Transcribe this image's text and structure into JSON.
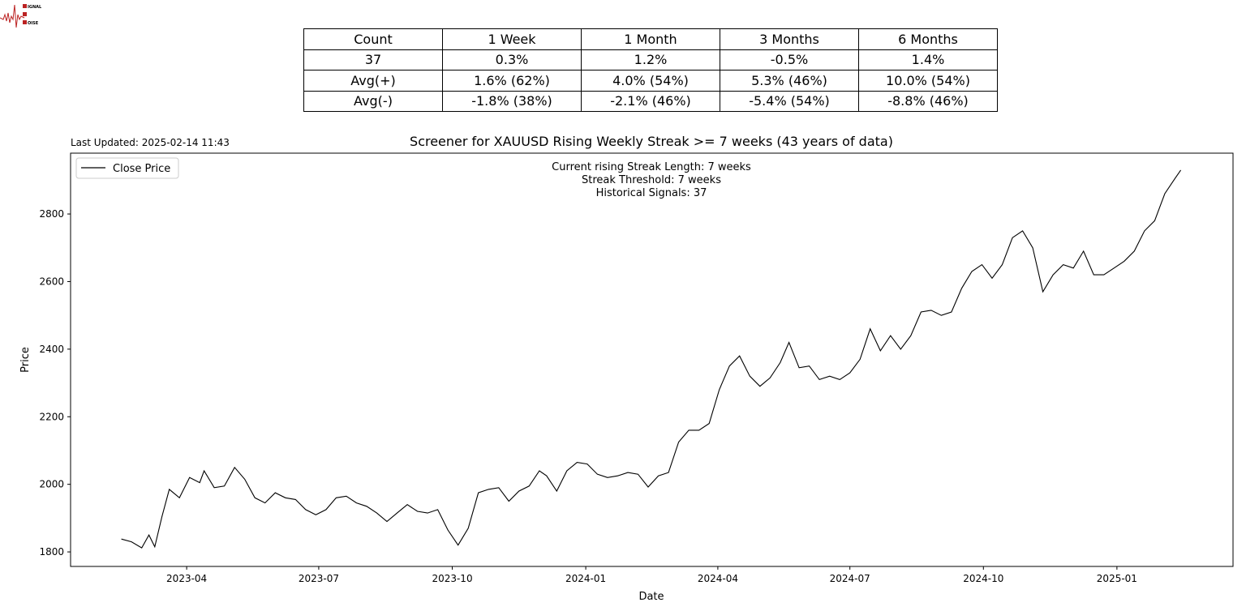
{
  "last_updated": "Last Updated: 2025-02-14 11:43",
  "logo_text": "SIGNAL 2 NOISE",
  "table": {
    "rows": [
      [
        "Count",
        "1 Week",
        "1 Month",
        "3 Months",
        "6 Months"
      ],
      [
        "37",
        "0.3%",
        "1.2%",
        "-0.5%",
        "1.4%"
      ],
      [
        "Avg(+)",
        "1.6% (62%)",
        "4.0% (54%)",
        "5.3% (46%)",
        "10.0% (54%)"
      ],
      [
        "Avg(-)",
        "-1.8% (38%)",
        "-2.1% (46%)",
        "-5.4% (54%)",
        "-8.8% (46%)"
      ]
    ]
  },
  "chart_data": {
    "type": "line",
    "title": "Screener for XAUUSD Rising Weekly Streak >= 7 weeks (43 years of data)",
    "xlabel": "Date",
    "ylabel": "Price",
    "annotations": [
      "Current rising Streak Length: 7 weeks",
      "Streak Threshold: 7 weeks",
      "Historical Signals: 37"
    ],
    "legend": {
      "position": "top-left",
      "entries": [
        "Close Price"
      ]
    },
    "grid": false,
    "xlim": [
      "2023-01-11",
      "2025-03-22"
    ],
    "ylim": [
      1757,
      2980
    ],
    "x_ticks": [
      "2023-04",
      "2023-07",
      "2023-10",
      "2024-01",
      "2024-04",
      "2024-07",
      "2024-10",
      "2025-01"
    ],
    "y_ticks": [
      1800,
      2000,
      2200,
      2400,
      2600,
      2800
    ],
    "line_color": "#000000",
    "series": [
      {
        "name": "Close Price",
        "points": [
          [
            "2023-02-15",
            1838
          ],
          [
            "2023-02-22",
            1830
          ],
          [
            "2023-03-01",
            1812
          ],
          [
            "2023-03-06",
            1850
          ],
          [
            "2023-03-10",
            1815
          ],
          [
            "2023-03-15",
            1905
          ],
          [
            "2023-03-20",
            1985
          ],
          [
            "2023-03-27",
            1960
          ],
          [
            "2023-04-03",
            2020
          ],
          [
            "2023-04-10",
            2005
          ],
          [
            "2023-04-13",
            2040
          ],
          [
            "2023-04-20",
            1990
          ],
          [
            "2023-04-27",
            1995
          ],
          [
            "2023-05-04",
            2050
          ],
          [
            "2023-05-11",
            2015
          ],
          [
            "2023-05-18",
            1960
          ],
          [
            "2023-05-25",
            1945
          ],
          [
            "2023-06-01",
            1975
          ],
          [
            "2023-06-08",
            1960
          ],
          [
            "2023-06-15",
            1955
          ],
          [
            "2023-06-22",
            1925
          ],
          [
            "2023-06-29",
            1910
          ],
          [
            "2023-07-06",
            1925
          ],
          [
            "2023-07-13",
            1960
          ],
          [
            "2023-07-20",
            1965
          ],
          [
            "2023-07-27",
            1945
          ],
          [
            "2023-08-03",
            1935
          ],
          [
            "2023-08-10",
            1915
          ],
          [
            "2023-08-17",
            1890
          ],
          [
            "2023-08-24",
            1915
          ],
          [
            "2023-08-31",
            1940
          ],
          [
            "2023-09-07",
            1920
          ],
          [
            "2023-09-14",
            1915
          ],
          [
            "2023-09-21",
            1925
          ],
          [
            "2023-09-28",
            1865
          ],
          [
            "2023-10-05",
            1820
          ],
          [
            "2023-10-12",
            1870
          ],
          [
            "2023-10-19",
            1975
          ],
          [
            "2023-10-26",
            1985
          ],
          [
            "2023-11-02",
            1990
          ],
          [
            "2023-11-09",
            1950
          ],
          [
            "2023-11-16",
            1980
          ],
          [
            "2023-11-23",
            1995
          ],
          [
            "2023-11-30",
            2040
          ],
          [
            "2023-12-05",
            2025
          ],
          [
            "2023-12-12",
            1980
          ],
          [
            "2023-12-19",
            2040
          ],
          [
            "2023-12-26",
            2065
          ],
          [
            "2024-01-02",
            2060
          ],
          [
            "2024-01-09",
            2030
          ],
          [
            "2024-01-16",
            2020
          ],
          [
            "2024-01-23",
            2025
          ],
          [
            "2024-01-30",
            2035
          ],
          [
            "2024-02-06",
            2030
          ],
          [
            "2024-02-13",
            1992
          ],
          [
            "2024-02-20",
            2025
          ],
          [
            "2024-02-27",
            2035
          ],
          [
            "2024-03-05",
            2125
          ],
          [
            "2024-03-12",
            2160
          ],
          [
            "2024-03-19",
            2160
          ],
          [
            "2024-03-26",
            2180
          ],
          [
            "2024-04-02",
            2280
          ],
          [
            "2024-04-09",
            2350
          ],
          [
            "2024-04-16",
            2380
          ],
          [
            "2024-04-23",
            2320
          ],
          [
            "2024-04-30",
            2290
          ],
          [
            "2024-05-07",
            2315
          ],
          [
            "2024-05-14",
            2360
          ],
          [
            "2024-05-20",
            2420
          ],
          [
            "2024-05-27",
            2345
          ],
          [
            "2024-06-03",
            2350
          ],
          [
            "2024-06-10",
            2310
          ],
          [
            "2024-06-17",
            2320
          ],
          [
            "2024-06-24",
            2310
          ],
          [
            "2024-07-01",
            2330
          ],
          [
            "2024-07-08",
            2370
          ],
          [
            "2024-07-15",
            2460
          ],
          [
            "2024-07-22",
            2395
          ],
          [
            "2024-07-29",
            2440
          ],
          [
            "2024-08-05",
            2400
          ],
          [
            "2024-08-12",
            2440
          ],
          [
            "2024-08-19",
            2510
          ],
          [
            "2024-08-26",
            2515
          ],
          [
            "2024-09-02",
            2500
          ],
          [
            "2024-09-09",
            2510
          ],
          [
            "2024-09-16",
            2580
          ],
          [
            "2024-09-23",
            2630
          ],
          [
            "2024-09-30",
            2650
          ],
          [
            "2024-10-07",
            2610
          ],
          [
            "2024-10-14",
            2650
          ],
          [
            "2024-10-21",
            2730
          ],
          [
            "2024-10-28",
            2750
          ],
          [
            "2024-11-04",
            2700
          ],
          [
            "2024-11-11",
            2570
          ],
          [
            "2024-11-18",
            2620
          ],
          [
            "2024-11-25",
            2650
          ],
          [
            "2024-12-02",
            2640
          ],
          [
            "2024-12-09",
            2690
          ],
          [
            "2024-12-16",
            2620
          ],
          [
            "2024-12-23",
            2620
          ],
          [
            "2024-12-30",
            2640
          ],
          [
            "2025-01-06",
            2660
          ],
          [
            "2025-01-13",
            2690
          ],
          [
            "2025-01-20",
            2750
          ],
          [
            "2025-01-27",
            2780
          ],
          [
            "2025-02-03",
            2860
          ],
          [
            "2025-02-10",
            2905
          ],
          [
            "2025-02-14",
            2930
          ]
        ]
      }
    ]
  }
}
